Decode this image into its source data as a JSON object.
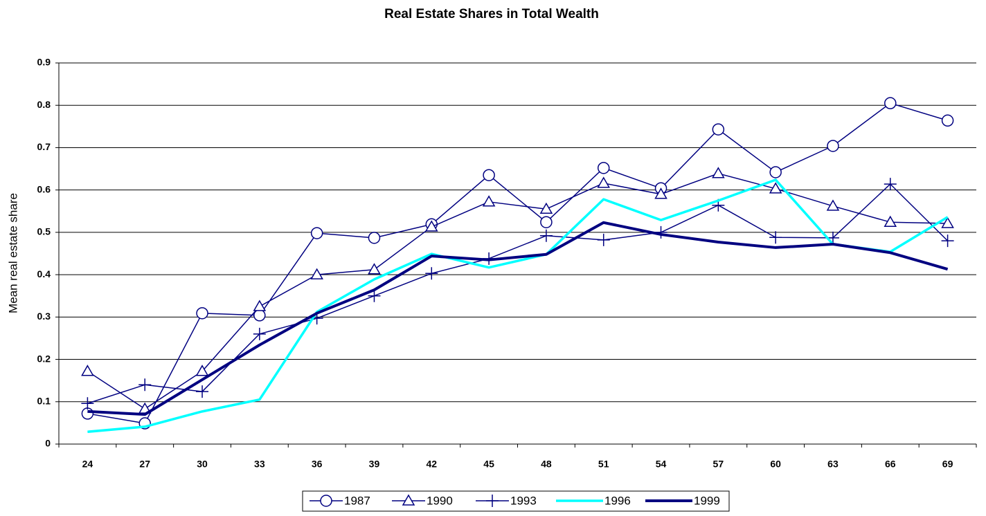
{
  "chart_data": {
    "type": "line",
    "title": "Real Estate Shares in Total Wealth",
    "y_label": "Mean real estate share",
    "categories": [
      "24",
      "27",
      "30",
      "33",
      "36",
      "39",
      "42",
      "45",
      "48",
      "51",
      "54",
      "57",
      "60",
      "63",
      "66",
      "69"
    ],
    "ylim": [
      0,
      0.9
    ],
    "yticks": [
      0,
      0.1,
      0.2,
      0.3,
      0.4,
      0.5,
      0.6,
      0.7,
      0.8,
      0.9
    ],
    "grid": true,
    "legend": "bottom",
    "series": [
      {
        "name": "1987",
        "color": "#000080",
        "marker": "circle",
        "linewidth": 1.5,
        "values": [
          0.072,
          0.049,
          0.309,
          0.304,
          0.498,
          0.487,
          0.519,
          0.635,
          0.524,
          0.652,
          0.604,
          0.743,
          0.642,
          0.704,
          0.805,
          0.764
        ]
      },
      {
        "name": "1990",
        "color": "#000080",
        "marker": "triangle",
        "linewidth": 1.5,
        "values": [
          0.172,
          0.083,
          0.172,
          0.325,
          0.4,
          0.412,
          0.513,
          0.572,
          0.555,
          0.616,
          0.59,
          0.639,
          0.603,
          0.562,
          0.524,
          0.521
        ]
      },
      {
        "name": "1993",
        "color": "#000080",
        "marker": "plus",
        "linewidth": 1.5,
        "values": [
          0.096,
          0.14,
          0.124,
          0.26,
          0.297,
          0.35,
          0.403,
          0.438,
          0.492,
          0.482,
          0.5,
          0.564,
          0.488,
          0.487,
          0.614,
          0.48
        ]
      },
      {
        "name": "1996",
        "color": "#00ffff",
        "marker": "none",
        "linewidth": 3.5,
        "values": [
          0.029,
          0.041,
          0.077,
          0.105,
          0.312,
          0.389,
          0.449,
          0.417,
          0.448,
          0.578,
          0.529,
          0.575,
          0.624,
          0.472,
          0.454,
          0.536
        ]
      },
      {
        "name": "1999",
        "color": "#000080",
        "marker": "none",
        "linewidth": 4,
        "values": [
          0.077,
          0.07,
          0.152,
          0.234,
          0.309,
          0.364,
          0.444,
          0.435,
          0.448,
          0.523,
          0.495,
          0.477,
          0.464,
          0.472,
          0.452,
          0.413
        ]
      }
    ]
  }
}
